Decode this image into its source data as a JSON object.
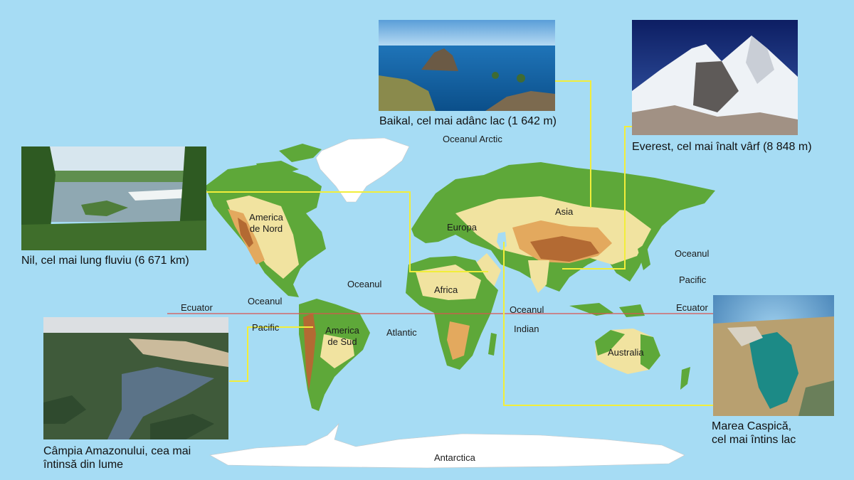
{
  "colors": {
    "ocean": "#a6dcf4",
    "lowland": "#5ea839",
    "upland": "#f1e3a0",
    "highland": "#e3a95e",
    "mountain": "#b36a33",
    "ice": "#ffffff",
    "connector": "#f2ee3a",
    "equator": "#d9534f"
  },
  "labels": {
    "north_america": "America\nde Nord",
    "south_america": "America\nde Sud",
    "europe": "Europa",
    "asia": "Asia",
    "africa": "Africa",
    "australia": "Australia",
    "antarctica": "Antarctica",
    "arctic_ocean": "Oceanul Arctic",
    "atlantic_1": "Oceanul",
    "atlantic_2": "Atlantic",
    "pacific_w1": "Oceanul",
    "pacific_w2": "Pacific",
    "pacific_e1": "Oceanul",
    "pacific_e2": "Pacific",
    "indian_1": "Oceanul",
    "indian_2": "Indian",
    "equator_w": "Ecuator",
    "equator_e": "Ecuator"
  },
  "photos": {
    "baikal": {
      "caption": "Baikal, cel mai adânc lac (1 642 m)",
      "photo_icon": "lake-photo"
    },
    "everest": {
      "caption": "Everest, cel mai înalt vârf (8 848 m)",
      "photo_icon": "mountain-photo"
    },
    "nile": {
      "caption": "Nil, cel mai lung fluviu (6 671 km)",
      "photo_icon": "river-photo"
    },
    "amazon": {
      "caption": "Câmpia Amazonului, cea  mai\nîntinsă din lume",
      "photo_icon": "plain-photo"
    },
    "caspian": {
      "caption": "Marea Caspică,\ncel mai întins lac",
      "photo_icon": "sea-photo"
    }
  }
}
